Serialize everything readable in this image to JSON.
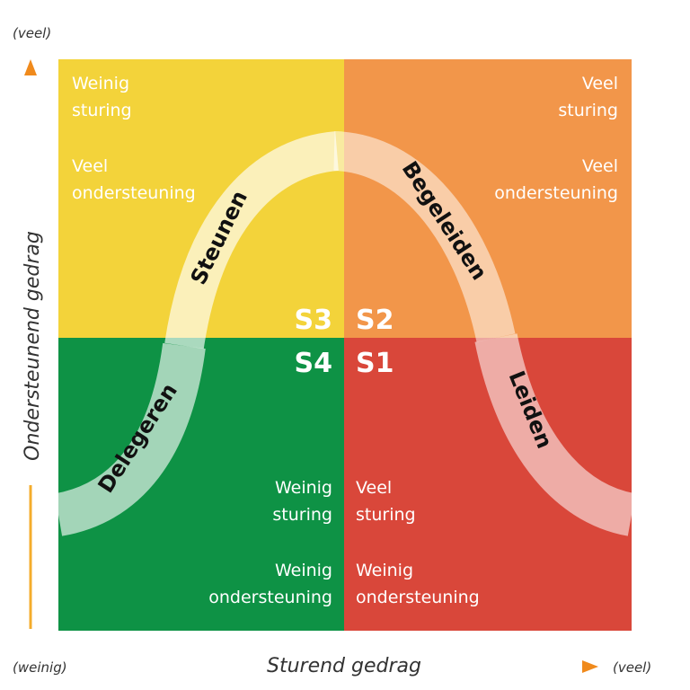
{
  "axes": {
    "y_top_label": "(veel)",
    "y_title": "Ondersteunend gedrag",
    "x_left_label": "(weinig)",
    "x_title": "Sturend gedrag",
    "x_right_label": "(veel)"
  },
  "quadrants": {
    "s3": {
      "code": "S3",
      "directive": [
        "Weinig",
        "sturing"
      ],
      "supportive": [
        "Veel",
        "ondersteuning"
      ],
      "color": "#F3D33A"
    },
    "s2": {
      "code": "S2",
      "directive": [
        "Veel",
        "sturing"
      ],
      "supportive": [
        "Veel",
        "ondersteuning"
      ],
      "color": "#F2964A"
    },
    "s4": {
      "code": "S4",
      "directive": [
        "Weinig",
        "sturing"
      ],
      "supportive": [
        "Weinig",
        "ondersteuning"
      ],
      "color": "#0E9245"
    },
    "s1": {
      "code": "S1",
      "directive": [
        "Veel",
        "sturing"
      ],
      "supportive": [
        "Weinig",
        "ondersteuning"
      ],
      "color": "#D9473A"
    }
  },
  "curve_labels": {
    "delegeren": "Delegeren",
    "steunen": "Steunen",
    "begeleiden": "Begeleiden",
    "leiden": "Leiden"
  },
  "colors": {
    "axis_arrow": "#F39C12",
    "axis_text": "#333333",
    "quadrant_text": "#ffffff",
    "curve_label": "#111111"
  }
}
